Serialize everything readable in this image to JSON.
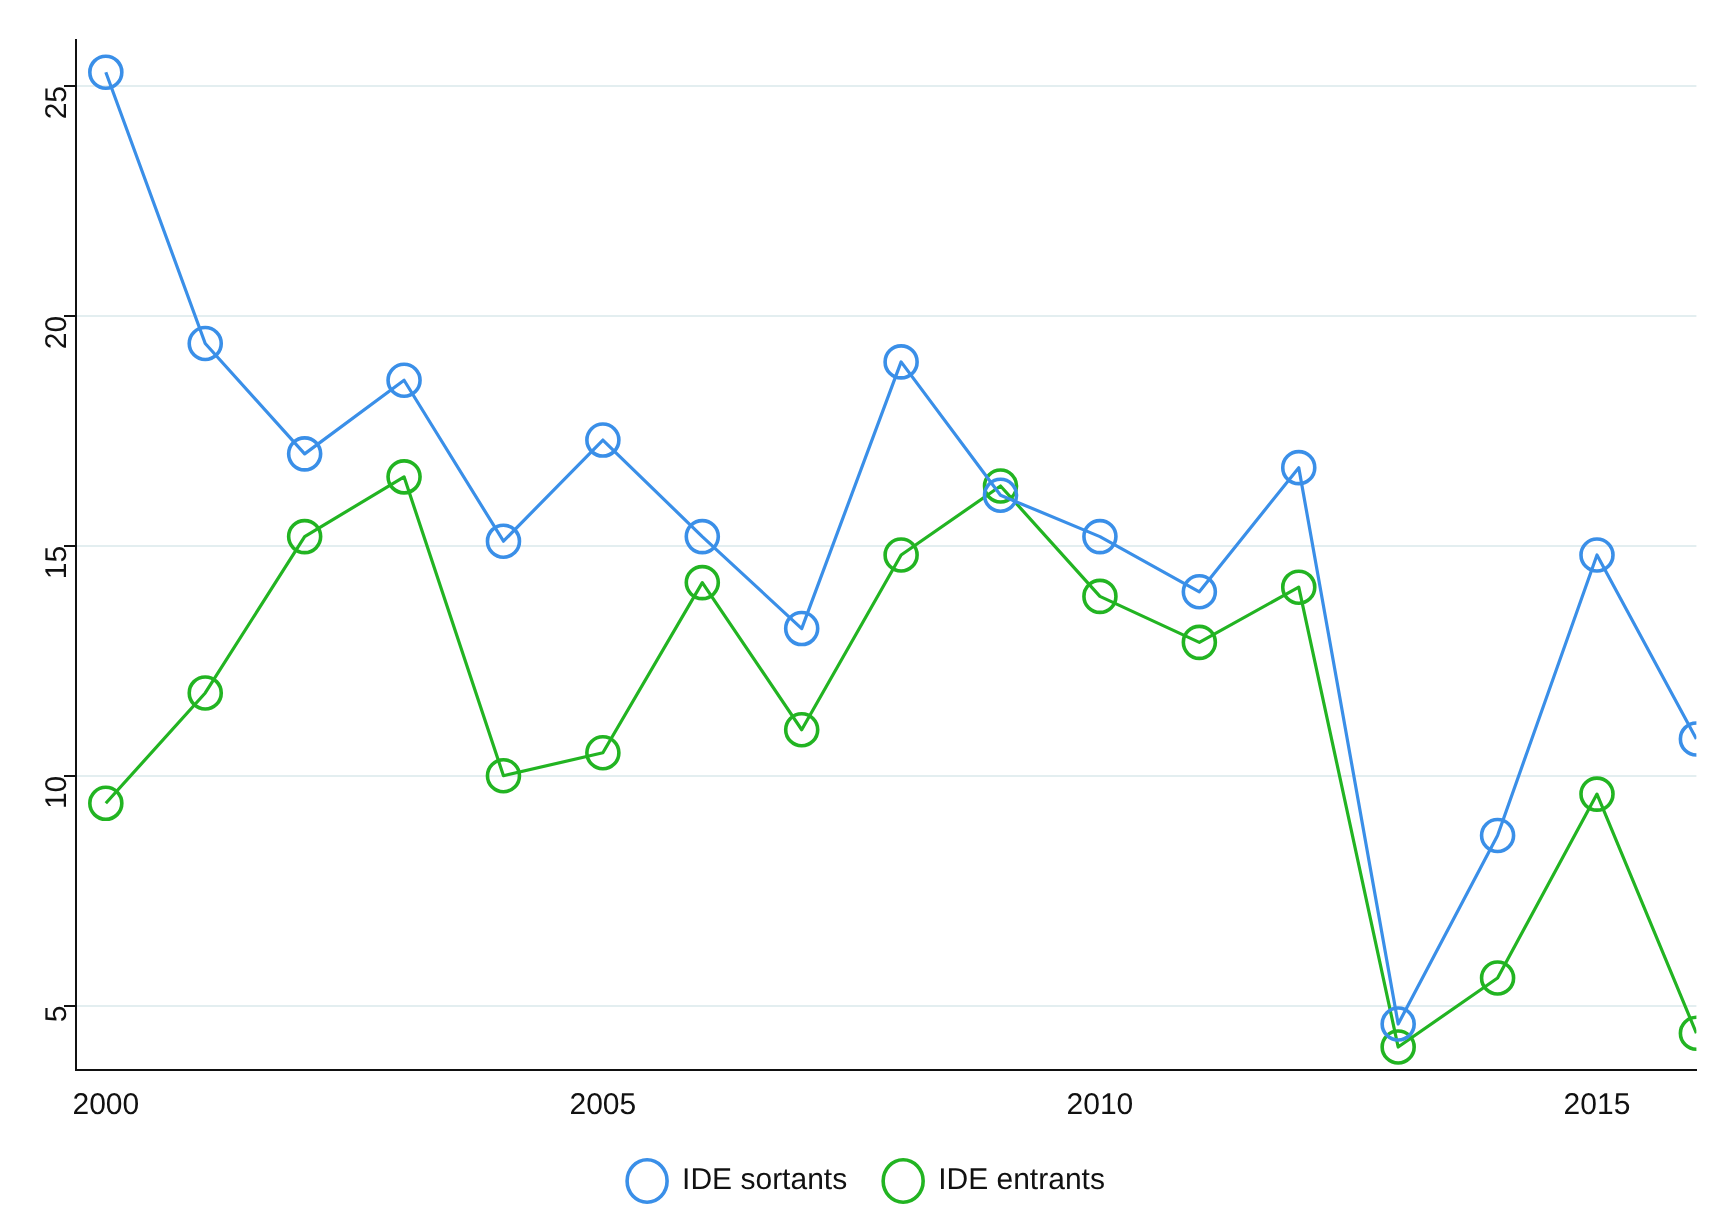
{
  "chart_data": {
    "type": "line",
    "x": [
      2000,
      2001,
      2002,
      2003,
      2004,
      2005,
      2006,
      2007,
      2008,
      2009,
      2010,
      2011,
      2012,
      2013,
      2014,
      2015,
      2016
    ],
    "series": [
      {
        "name": "IDE sortants",
        "color": "#3a8fe8",
        "values": [
          25.3,
          19.4,
          17.0,
          18.6,
          15.1,
          17.3,
          15.2,
          13.2,
          19.0,
          16.1,
          15.2,
          14.0,
          16.7,
          4.6,
          8.7,
          14.8,
          10.8
        ]
      },
      {
        "name": "IDE entrants",
        "color": "#22b422",
        "values": [
          9.4,
          11.8,
          15.2,
          16.5,
          10.0,
          10.5,
          14.2,
          11.0,
          14.8,
          16.3,
          13.9,
          12.9,
          14.1,
          4.1,
          5.6,
          9.6,
          4.4
        ]
      }
    ],
    "xlim": [
      1999.7,
      2016
    ],
    "xticks": [
      2000,
      2005,
      2010,
      2015
    ],
    "ylim": [
      3.6,
      26
    ],
    "yticks": [
      5,
      10,
      15,
      20,
      25
    ],
    "grid": "y",
    "legend": "bottom",
    "marker": "circle",
    "line_style": "solid"
  }
}
